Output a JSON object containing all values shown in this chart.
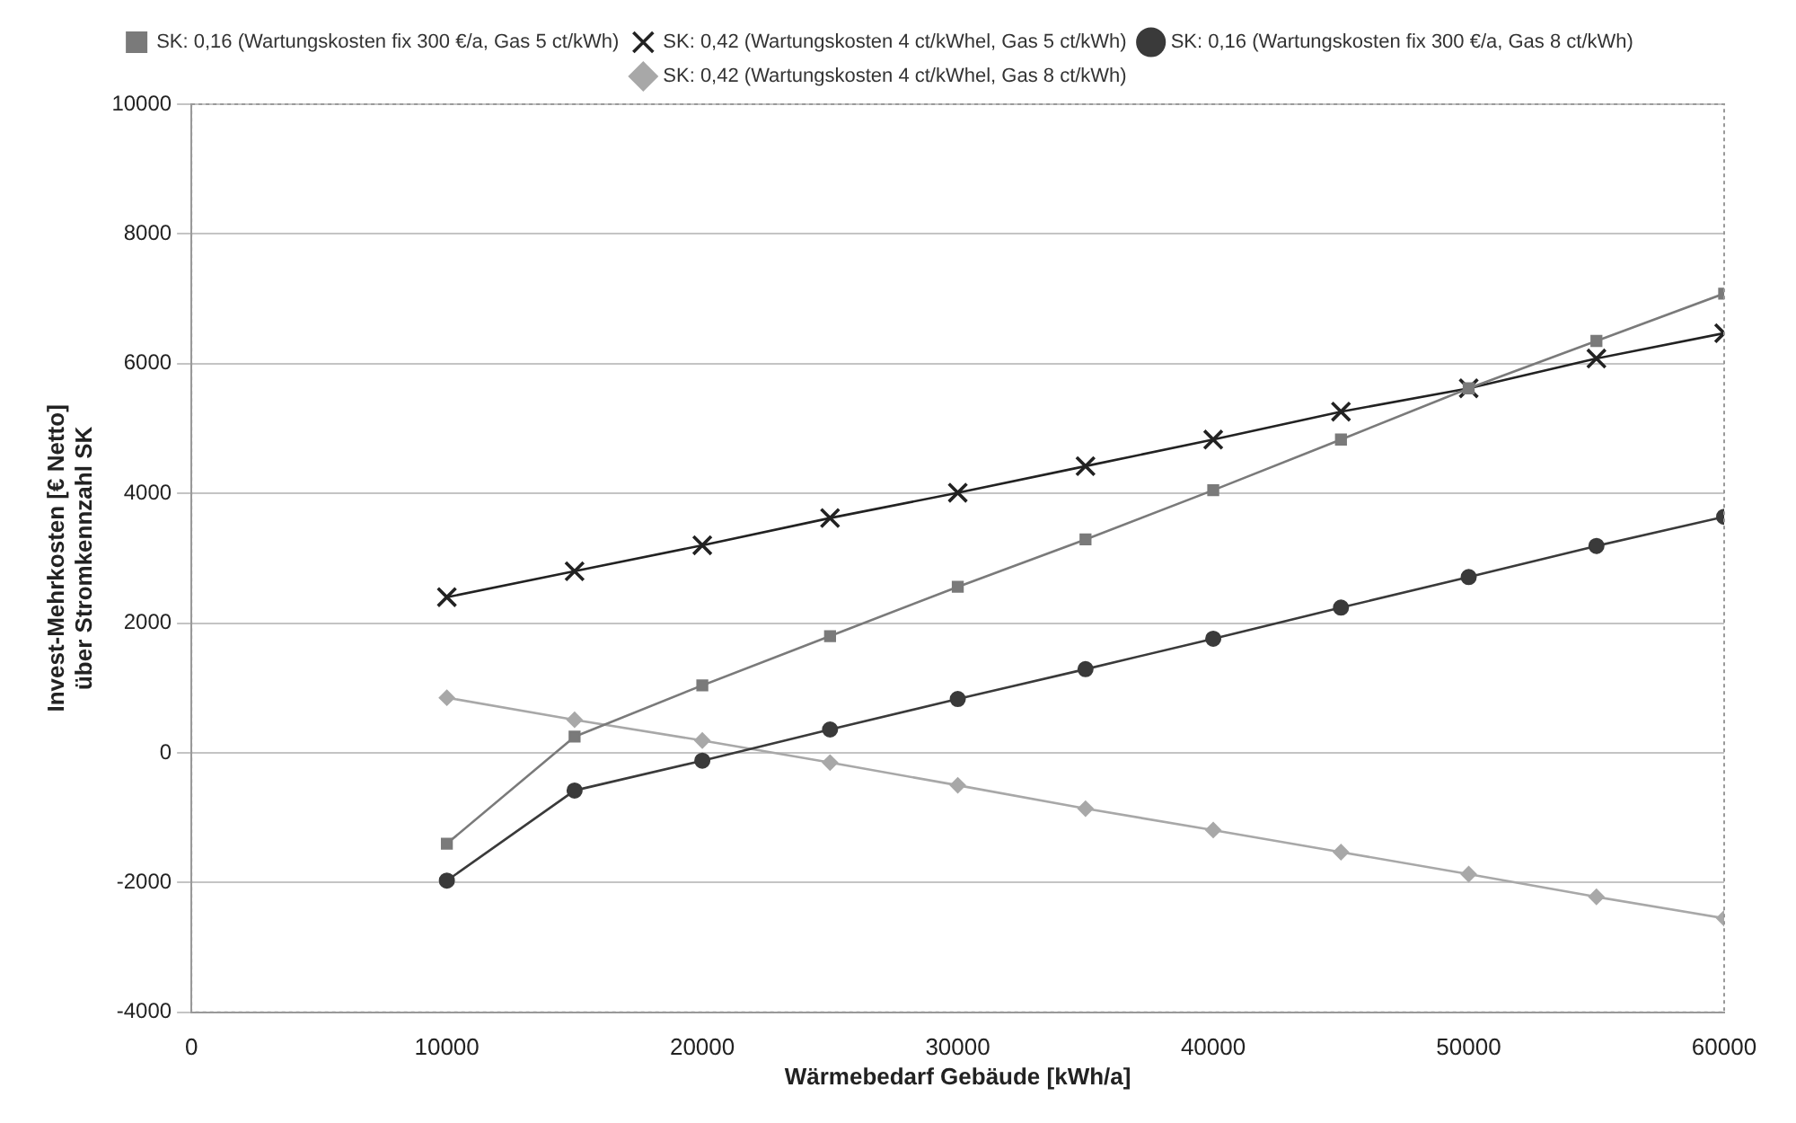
{
  "chart_data": {
    "type": "line",
    "xlabel": "Wärmebedarf Gebäude [kWh/a]",
    "ylabel": "Invest-Mehrkosten [€ Netto]\nüber Stromkennzahl SK",
    "x": [
      10000,
      15000,
      20000,
      25000,
      30000,
      35000,
      40000,
      45000,
      50000,
      55000,
      60000
    ],
    "xlim": [
      0,
      60000
    ],
    "xticks": [
      0,
      10000,
      20000,
      30000,
      40000,
      50000,
      60000
    ],
    "ylim": [
      -4000,
      10000
    ],
    "yticks": [
      -4000,
      -2000,
      0,
      2000,
      4000,
      6000,
      8000,
      10000
    ],
    "grid": "y",
    "legend": "top",
    "series": [
      {
        "name": "SK: 0,16 (Wartungskosten fix 300 €/a, Gas 5 ct/kWh)",
        "color": "#7a7a7a",
        "marker": "square",
        "values": [
          -1400,
          250,
          1040,
          1800,
          2560,
          3290,
          4050,
          4830,
          5620,
          6350,
          7080
        ]
      },
      {
        "name": "SK: 0,42 (Wartungskosten 4 ct/kWhel, Gas 5 ct/kWh)",
        "color": "#222222",
        "marker": "cross",
        "values": [
          2400,
          2800,
          3200,
          3620,
          4010,
          4420,
          4830,
          5260,
          5620,
          6080,
          6470
        ]
      },
      {
        "name": "SK: 0,16 (Wartungskosten fix 300 €/a, Gas 8 ct/kWh)",
        "color": "#3a3a3a",
        "marker": "circle",
        "values": [
          -1970,
          -580,
          -120,
          360,
          830,
          1290,
          1760,
          2240,
          2710,
          3190,
          3640
        ]
      },
      {
        "name": "SK: 0,42 (Wartungskosten 4 ct/kWhel, Gas 8 ct/kWh)",
        "color": "#a8a8a8",
        "marker": "diamond",
        "values": [
          850,
          510,
          190,
          -150,
          -500,
          -860,
          -1190,
          -1530,
          -1870,
          -2220,
          -2550
        ]
      }
    ]
  }
}
